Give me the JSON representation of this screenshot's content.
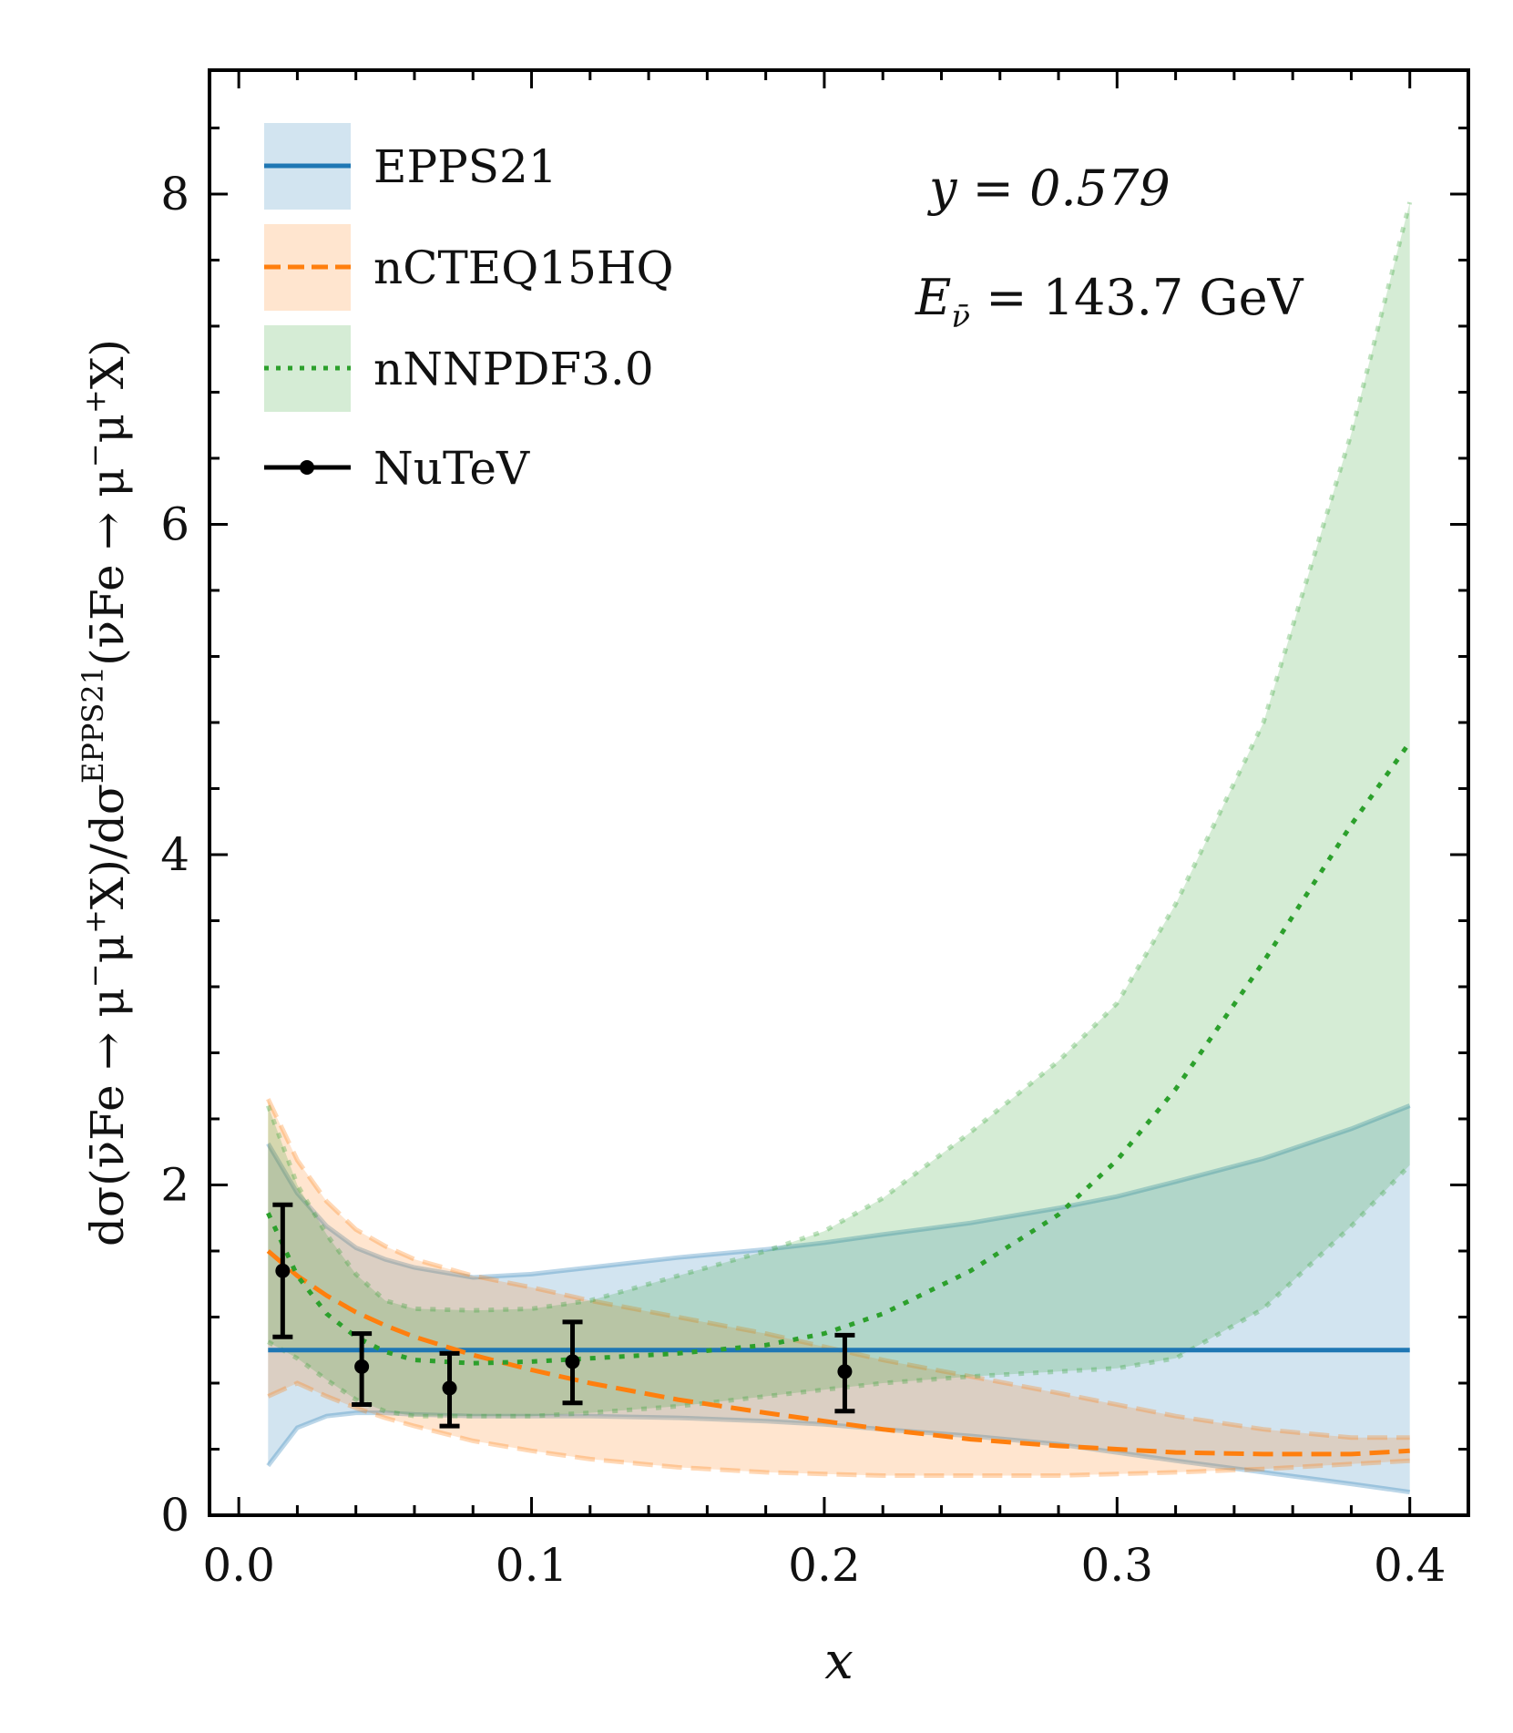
{
  "chart_data": {
    "type": "line",
    "title": "",
    "xlabel": "x",
    "ylabel": "dσ(ν̄Fe → μ⁻μ⁺X)/dσ^EPPS21(ν̄Fe → μ⁻μ⁺X)",
    "xlim": [
      -0.01,
      0.42
    ],
    "ylim": [
      0,
      8.75
    ],
    "xticks": [
      0.0,
      0.1,
      0.2,
      0.3,
      0.4
    ],
    "xtick_labels": [
      "0.0",
      "0.1",
      "0.2",
      "0.3",
      "0.4"
    ],
    "yticks": [
      0,
      2,
      4,
      6,
      8
    ],
    "ytick_labels": [
      "0",
      "2",
      "4",
      "6",
      "8"
    ],
    "grid": false,
    "legend_position": "top-left",
    "annotations": [
      "y = 0.579",
      "E_ν̄ = 143.7 GeV"
    ],
    "x": [
      0.01,
      0.02,
      0.03,
      0.04,
      0.05,
      0.06,
      0.08,
      0.1,
      0.12,
      0.15,
      0.18,
      0.2,
      0.22,
      0.25,
      0.28,
      0.3,
      0.32,
      0.35,
      0.38,
      0.4
    ],
    "series": [
      {
        "name": "EPPS21",
        "color": "#1f77b4",
        "style": "solid",
        "central": [
          1.0,
          1.0,
          1.0,
          1.0,
          1.0,
          1.0,
          1.0,
          1.0,
          1.0,
          1.0,
          1.0,
          1.0,
          1.0,
          1.0,
          1.0,
          1.0,
          1.0,
          1.0,
          1.0,
          1.0
        ],
        "lower": [
          0.3,
          0.53,
          0.6,
          0.62,
          0.62,
          0.61,
          0.6,
          0.6,
          0.6,
          0.59,
          0.57,
          0.55,
          0.52,
          0.48,
          0.43,
          0.38,
          0.33,
          0.26,
          0.19,
          0.14
        ],
        "upper": [
          2.25,
          1.95,
          1.75,
          1.62,
          1.55,
          1.5,
          1.44,
          1.46,
          1.5,
          1.56,
          1.61,
          1.65,
          1.7,
          1.77,
          1.86,
          1.93,
          2.02,
          2.16,
          2.34,
          2.48
        ]
      },
      {
        "name": "nCTEQ15HQ",
        "color": "#ff7f0e",
        "style": "dashed",
        "central": [
          1.6,
          1.45,
          1.33,
          1.23,
          1.15,
          1.08,
          0.97,
          0.88,
          0.8,
          0.7,
          0.62,
          0.57,
          0.52,
          0.46,
          0.42,
          0.4,
          0.38,
          0.37,
          0.37,
          0.39
        ],
        "lower": [
          0.72,
          0.8,
          0.72,
          0.65,
          0.59,
          0.54,
          0.45,
          0.39,
          0.34,
          0.29,
          0.26,
          0.25,
          0.24,
          0.24,
          0.24,
          0.25,
          0.26,
          0.28,
          0.31,
          0.33
        ],
        "upper": [
          2.52,
          2.15,
          1.9,
          1.73,
          1.63,
          1.55,
          1.45,
          1.38,
          1.3,
          1.2,
          1.1,
          1.02,
          0.94,
          0.84,
          0.74,
          0.67,
          0.6,
          0.52,
          0.47,
          0.47
        ]
      },
      {
        "name": "nNNPDF3.0",
        "color": "#2ca02c",
        "style": "dotted",
        "central": [
          1.83,
          1.45,
          1.22,
          1.08,
          0.99,
          0.94,
          0.92,
          0.93,
          0.95,
          0.98,
          1.03,
          1.1,
          1.22,
          1.48,
          1.82,
          2.15,
          2.58,
          3.35,
          4.18,
          4.68
        ],
        "lower": [
          1.05,
          0.95,
          0.82,
          0.7,
          0.63,
          0.6,
          0.6,
          0.6,
          0.62,
          0.66,
          0.72,
          0.76,
          0.8,
          0.84,
          0.87,
          0.89,
          0.95,
          1.25,
          1.75,
          2.12
        ],
        "upper": [
          2.48,
          2.0,
          1.7,
          1.46,
          1.3,
          1.25,
          1.24,
          1.25,
          1.3,
          1.45,
          1.6,
          1.72,
          1.92,
          2.32,
          2.75,
          3.1,
          3.7,
          4.8,
          6.55,
          7.95
        ]
      }
    ],
    "data_points": {
      "name": "NuTeV",
      "color": "#000000",
      "x": [
        0.015,
        0.042,
        0.072,
        0.114,
        0.207
      ],
      "y": [
        1.48,
        0.9,
        0.77,
        0.93,
        0.87
      ],
      "yerr_low": [
        1.08,
        0.67,
        0.54,
        0.68,
        0.63
      ],
      "yerr_high": [
        1.88,
        1.1,
        0.98,
        1.17,
        1.09
      ]
    }
  },
  "legend": {
    "items": [
      {
        "label": "EPPS21"
      },
      {
        "label": "nCTEQ15HQ"
      },
      {
        "label": "nNNPDF3.0"
      },
      {
        "label": "NuTeV"
      }
    ]
  },
  "annotation": {
    "y_text": "y = 0.579",
    "e_symbol": "E",
    "e_sub": "ν̄",
    "e_value": " = 143.7 GeV"
  },
  "axes": {
    "xlabel": "x",
    "ylabel_parts": {
      "prefix": "dσ(ν̄Fe → μ",
      "sup1": "−",
      "mid1": "μ",
      "sup2": "+",
      "mid2": "X)/dσ",
      "sup3": "EPPS21",
      "mid3": "(ν̄Fe → μ",
      "sup4": "−",
      "mid4": "μ",
      "sup5": "+",
      "suffix": "X)"
    }
  }
}
